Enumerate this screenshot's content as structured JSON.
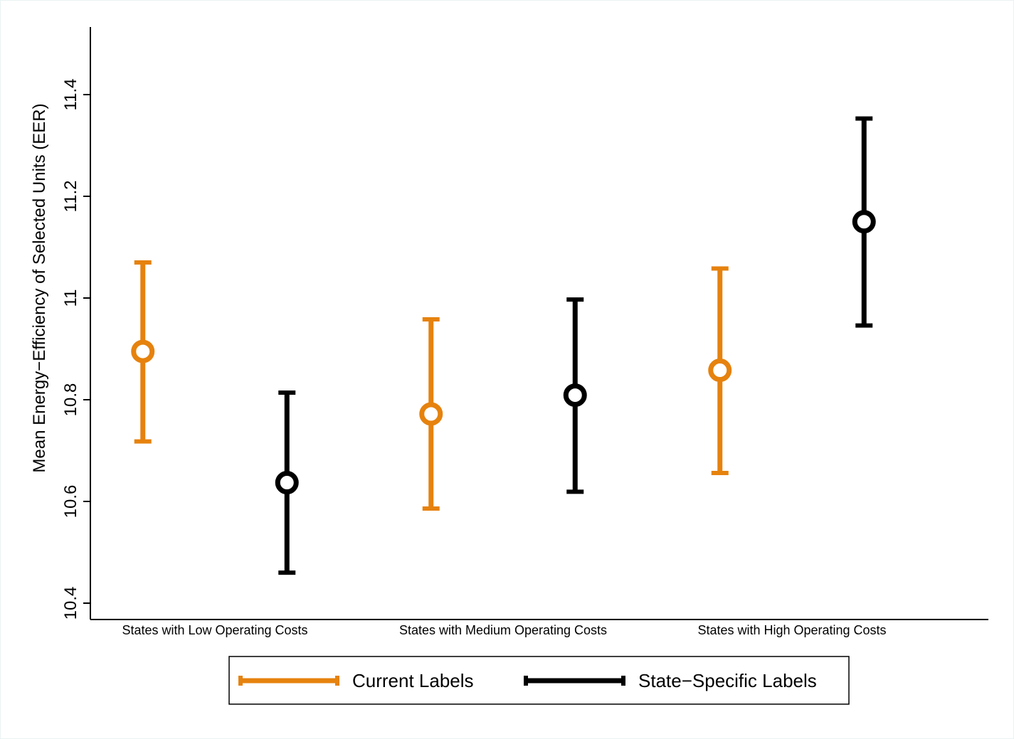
{
  "chart_data": {
    "type": "scatter",
    "subtype": "error-bar",
    "ylabel": "Mean Energy−Efficiency of Selected Units (EER)",
    "xlabel": "",
    "ylim": [
      10.4,
      11.55
    ],
    "yticks": [
      10.4,
      10.6,
      10.8,
      11,
      11.2,
      11.4
    ],
    "ytick_labels": [
      "10.4",
      "10.6",
      "10.8",
      "11",
      "11.2",
      "11.4"
    ],
    "categories": [
      "States with Low Operating Costs",
      "States with Medium Operating Costs",
      "States with High Operating Costs"
    ],
    "series": [
      {
        "name": "Current Labels",
        "color": "#e6820e",
        "offset": -0.25,
        "points": [
          {
            "category": 0,
            "mean": 10.895,
            "lower": 10.718,
            "upper": 11.07
          },
          {
            "category": 1,
            "mean": 10.772,
            "lower": 10.586,
            "upper": 10.958
          },
          {
            "category": 2,
            "mean": 10.858,
            "lower": 10.656,
            "upper": 11.058
          }
        ]
      },
      {
        "name": "State−Specific Labels",
        "color": "#000000",
        "offset": 0.25,
        "points": [
          {
            "category": 0,
            "mean": 10.637,
            "lower": 10.46,
            "upper": 10.814
          },
          {
            "category": 1,
            "mean": 10.809,
            "lower": 10.619,
            "upper": 10.997
          },
          {
            "category": 2,
            "mean": 11.15,
            "lower": 10.946,
            "upper": 11.353
          }
        ]
      }
    ],
    "legend": {
      "position": "bottom",
      "boxed": true
    }
  }
}
